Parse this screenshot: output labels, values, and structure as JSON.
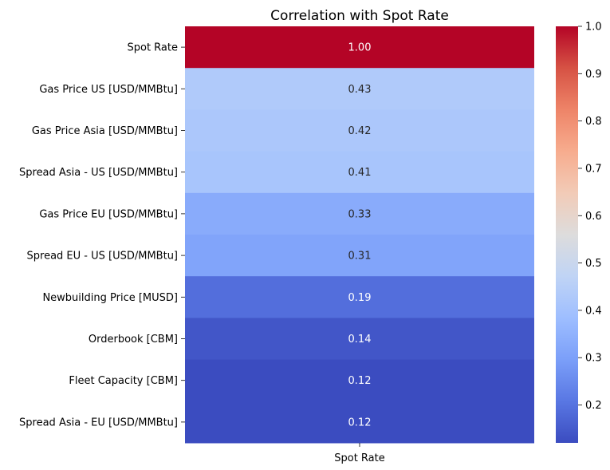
{
  "chart_data": {
    "type": "heatmap",
    "title": "Correlation with Spot Rate",
    "columns": [
      "Spot Rate"
    ],
    "rows": [
      "Spot Rate",
      "Gas Price US [USD/MMBtu]",
      "Gas Price Asia [USD/MMBtu]",
      "Spread Asia - US [USD/MMBtu]",
      "Gas Price EU [USD/MMBtu]",
      "Spread EU - US [USD/MMBtu]",
      "Newbuilding Price [MUSD]",
      "Orderbook [CBM]",
      "Fleet Capacity [CBM]",
      "Spread Asia - EU [USD/MMBtu]"
    ],
    "values": [
      1.0,
      0.43,
      0.42,
      0.41,
      0.33,
      0.31,
      0.19,
      0.14,
      0.12,
      0.12
    ],
    "value_labels": [
      "1.00",
      "0.43",
      "0.42",
      "0.41",
      "0.33",
      "0.31",
      "0.19",
      "0.14",
      "0.12",
      "0.12"
    ],
    "colormap": "coolwarm",
    "colorbar": {
      "vmin": 0.12,
      "vmax": 1.0,
      "ticks": [
        "0.2",
        "0.3",
        "0.4",
        "0.5",
        "0.6",
        "0.7",
        "0.8",
        "0.9",
        "1.0"
      ]
    }
  }
}
